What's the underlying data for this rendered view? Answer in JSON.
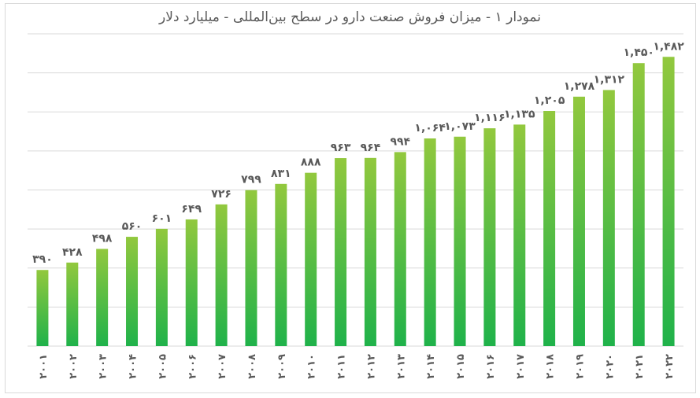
{
  "chart_data": {
    "type": "bar",
    "title": "نمودار ۱ - میزان فروش صنعت دارو در سطح بین‌المللی - میلیارد دلار",
    "categories": [
      "۲۰۰۱",
      "۲۰۰۲",
      "۲۰۰۳",
      "۲۰۰۴",
      "۲۰۰۵",
      "۲۰۰۶",
      "۲۰۰۷",
      "۲۰۰۸",
      "۲۰۰۹",
      "۲۰۱۰",
      "۲۰۱۱",
      "۲۰۱۲",
      "۲۰۱۳",
      "۲۰۱۴",
      "۲۰۱۵",
      "۲۰۱۶",
      "۲۰۱۷",
      "۲۰۱۸",
      "۲۰۱۹",
      "۲۰۲۰",
      "۲۰۲۱",
      "۲۰۲۲"
    ],
    "values": [
      390,
      428,
      498,
      560,
      601,
      649,
      726,
      799,
      831,
      888,
      963,
      964,
      994,
      1064,
      1073,
      1116,
      1135,
      1205,
      1278,
      1312,
      1450,
      1482
    ],
    "data_labels": [
      "۳۹۰",
      "۴۲۸",
      "۴۹۸",
      "۵۶۰",
      "۶۰۱",
      "۶۴۹",
      "۷۲۶",
      "۷۹۹",
      "۸۳۱",
      "۸۸۸",
      "۹۶۳",
      "۹۶۴",
      "۹۹۴",
      "۱,۰۶۴",
      "۱,۰۷۳",
      "۱,۱۱۶",
      "۱,۱۳۵",
      "۱,۲۰۵",
      "۱,۲۷۸",
      "۱,۳۱۲",
      "۱,۴۵۰",
      "۱,۴۸۲"
    ],
    "ylim": [
      0,
      1600
    ],
    "grid_step": 200,
    "grid": true,
    "xlabel": "",
    "ylabel": "",
    "colors": {
      "bar_top": "#92c83e",
      "bar_bottom": "#1fb24a",
      "grid": "#d9d9d9",
      "label": "#595959"
    }
  }
}
